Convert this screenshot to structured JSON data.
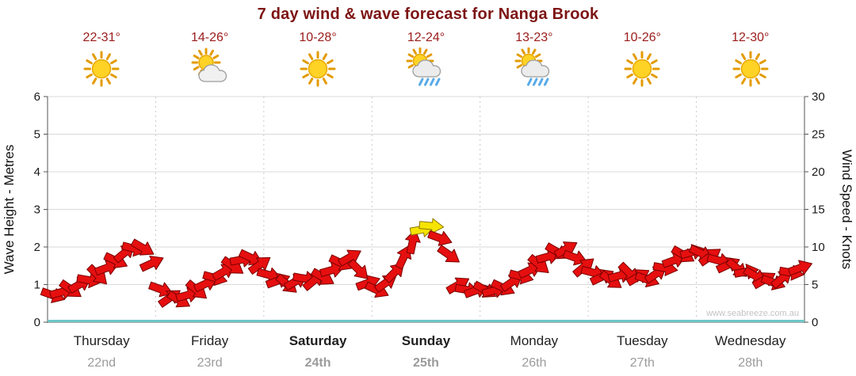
{
  "title": "7 day wind & wave forecast for Nanga Brook",
  "watermark": "www.seabreeze.com.au",
  "colors": {
    "title": "#7d1414",
    "temp": "#9b1b1b",
    "arrow_fill": "#e60f0f",
    "arrow_stroke": "#7a0000",
    "arrow_peak_fill": "#f6e400",
    "arrow_peak_stroke": "#8a7400",
    "wave_line": "#6fc7c7",
    "grid": "#d9d9d9",
    "day_boundary": "#c9c9c9",
    "axis": "#555555",
    "tick_text": "#1a1a1a",
    "axis_title": "#111111",
    "day_name": "#1f1f1f",
    "date_text": "#9b9b9b",
    "watermark_text": "#c4c4c4"
  },
  "days": [
    {
      "name": "Thursday",
      "date": "22nd",
      "temp": "22-31°",
      "icon": "sunny",
      "weekend": false
    },
    {
      "name": "Friday",
      "date": "23rd",
      "temp": "14-26°",
      "icon": "partly-cloudy",
      "weekend": false
    },
    {
      "name": "Saturday",
      "date": "24th",
      "temp": "10-28°",
      "icon": "sunny",
      "weekend": true
    },
    {
      "name": "Sunday",
      "date": "25th",
      "temp": "12-24°",
      "icon": "rain-showers",
      "weekend": true
    },
    {
      "name": "Monday",
      "date": "26th",
      "temp": "13-23°",
      "icon": "rain-showers",
      "weekend": false
    },
    {
      "name": "Tuesday",
      "date": "27th",
      "temp": "10-26°",
      "icon": "sunny",
      "weekend": false
    },
    {
      "name": "Wednesday",
      "date": "28th",
      "temp": "12-30°",
      "icon": "sunny",
      "weekend": false
    }
  ],
  "chart_data": {
    "type": "wind-arrows",
    "title": "7 day wind & wave forecast for Nanga Brook",
    "ylabel_left": "Wave Height - Metres",
    "ylabel_right": "Wind Speed - Knots",
    "ylim_left": [
      0,
      6
    ],
    "ylim_right": [
      0,
      30
    ],
    "yticks_left": [
      0,
      1,
      2,
      3,
      4,
      5,
      6
    ],
    "yticks_right": [
      0,
      5,
      10,
      15,
      20,
      25,
      30
    ],
    "categories": [
      "Thursday 22nd",
      "Friday 23rd",
      "Saturday 24th",
      "Sunday 25th",
      "Monday 26th",
      "Tuesday 27th",
      "Wednesday 28th"
    ],
    "samples_per_day": 12,
    "wave_height_metres": 0,
    "arrow_fields": [
      "wind_speed_knots",
      "direction_deg"
    ],
    "wind_arrows_knots_deg": [
      [
        3.6,
        20
      ],
      [
        4.0,
        -15
      ],
      [
        4.4,
        35
      ],
      [
        5.0,
        -30
      ],
      [
        5.6,
        10
      ],
      [
        6.3,
        45
      ],
      [
        7.2,
        -20
      ],
      [
        8.2,
        25
      ],
      [
        9.2,
        -40
      ],
      [
        9.8,
        15
      ],
      [
        9.9,
        30
      ],
      [
        7.8,
        -25
      ],
      [
        4.4,
        20
      ],
      [
        3.2,
        -35
      ],
      [
        3.0,
        30
      ],
      [
        3.6,
        -15
      ],
      [
        4.3,
        40
      ],
      [
        5.1,
        -25
      ],
      [
        5.9,
        15
      ],
      [
        6.7,
        -30
      ],
      [
        7.5,
        35
      ],
      [
        8.3,
        -10
      ],
      [
        8.6,
        25
      ],
      [
        7.6,
        -35
      ],
      [
        6.3,
        15
      ],
      [
        5.5,
        -20
      ],
      [
        5.1,
        40
      ],
      [
        5.4,
        -30
      ],
      [
        5.8,
        10
      ],
      [
        5.5,
        -40
      ],
      [
        6.0,
        30
      ],
      [
        6.9,
        -15
      ],
      [
        7.9,
        25
      ],
      [
        8.6,
        -30
      ],
      [
        7.0,
        45
      ],
      [
        5.2,
        -20
      ],
      [
        4.3,
        25
      ],
      [
        5.2,
        -35
      ],
      [
        6.6,
        -45
      ],
      [
        8.6,
        -65
      ],
      [
        10.6,
        -78
      ],
      [
        12.3,
        -10
      ],
      [
        12.8,
        5
      ],
      [
        11.2,
        20
      ],
      [
        9.0,
        35
      ],
      [
        4.9,
        -30
      ],
      [
        4.3,
        10
      ],
      [
        4.2,
        -20
      ],
      [
        4.3,
        30
      ],
      [
        4.2,
        -15
      ],
      [
        4.6,
        25
      ],
      [
        5.3,
        -35
      ],
      [
        6.1,
        15
      ],
      [
        6.9,
        -25
      ],
      [
        7.7,
        40
      ],
      [
        8.7,
        -15
      ],
      [
        9.4,
        30
      ],
      [
        9.7,
        -30
      ],
      [
        8.6,
        20
      ],
      [
        7.3,
        -40
      ],
      [
        6.6,
        15
      ],
      [
        6.0,
        -25
      ],
      [
        5.6,
        35
      ],
      [
        6.2,
        -15
      ],
      [
        6.6,
        45
      ],
      [
        6.0,
        -30
      ],
      [
        5.7,
        20
      ],
      [
        6.4,
        -35
      ],
      [
        7.2,
        10
      ],
      [
        8.2,
        -20
      ],
      [
        9.0,
        30
      ],
      [
        9.3,
        -15
      ],
      [
        9.2,
        25
      ],
      [
        8.7,
        -35
      ],
      [
        8.2,
        15
      ],
      [
        7.6,
        -25
      ],
      [
        7.2,
        40
      ],
      [
        6.7,
        -10
      ],
      [
        6.2,
        30
      ],
      [
        5.6,
        -30
      ],
      [
        5.3,
        20
      ],
      [
        5.8,
        -40
      ],
      [
        6.6,
        10
      ],
      [
        7.2,
        -20
      ]
    ],
    "peak_arrow_indices": [
      41,
      42
    ]
  }
}
